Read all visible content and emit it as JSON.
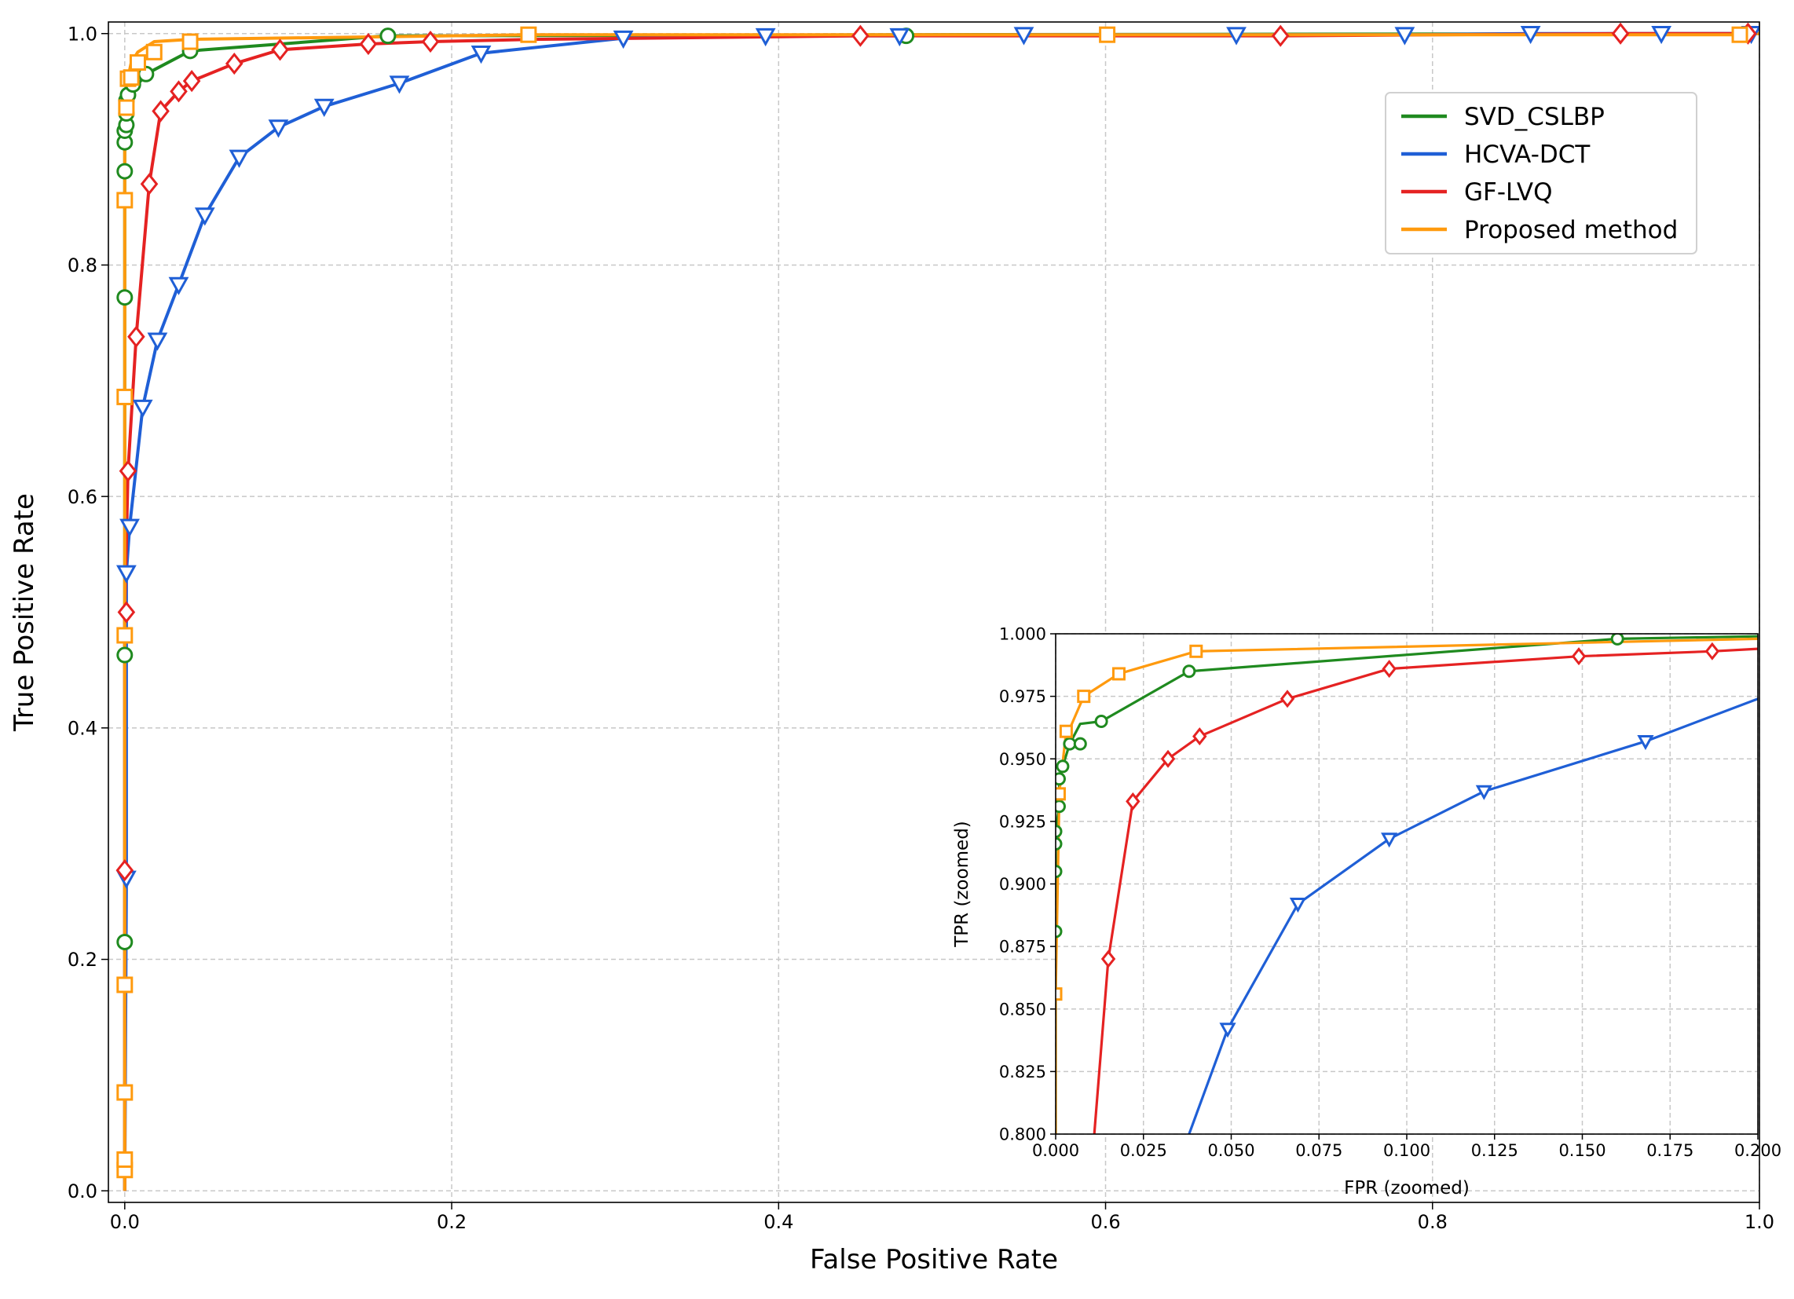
{
  "chart_data": [
    {
      "type": "line",
      "xlabel": "False Positive Rate",
      "ylabel": "True Positive Rate",
      "xlim": [
        -0.01,
        1.0
      ],
      "ylim": [
        -0.01,
        1.01
      ],
      "xticks": [
        0.0,
        0.2,
        0.4,
        0.6,
        0.8,
        1.0
      ],
      "xtick_labels": [
        "0.0",
        "0.2",
        "0.4",
        "0.6",
        "0.8",
        "1.0"
      ],
      "yticks": [
        0.0,
        0.2,
        0.4,
        0.6,
        0.8,
        1.0
      ],
      "ytick_labels": [
        "0.0",
        "0.2",
        "0.4",
        "0.6",
        "0.8",
        "1.0"
      ],
      "grid": true,
      "legend_position": "upper right",
      "series": [
        {
          "name": "SVD_CSLBP",
          "color": "#1f8a1f",
          "marker": "circle",
          "x": [
            0,
            0,
            0,
            0,
            0,
            0,
            0,
            0.001,
            0.001,
            0.002,
            0.004,
            0.008,
            0.013,
            0.04,
            0.16,
            0.475,
            1.0
          ],
          "y": [
            0,
            0.215,
            0.463,
            0.772,
            0.881,
            0.906,
            0.916,
            0.921,
            0.931,
            0.942,
            0.947,
            0.956,
            0.965,
            0.985,
            0.998,
            0.999,
            1.0
          ],
          "markers_x": [
            0,
            0,
            0.0,
            0.0,
            0.0,
            0.0,
            0.001,
            0.001,
            0.001,
            0.002,
            0.005,
            0.013,
            0.04,
            0.161,
            0.478
          ],
          "markers_y": [
            0.215,
            0.463,
            0.772,
            0.881,
            0.906,
            0.916,
            0.921,
            0.931,
            0.942,
            0.947,
            0.956,
            0.965,
            0.985,
            0.998,
            0.998
          ]
        },
        {
          "name": "HCVA-DCT",
          "color": "#1f5fd6",
          "marker": "triangle-down",
          "x": [
            0,
            0.001,
            0.001,
            0.003,
            0.011,
            0.02,
            0.033,
            0.049,
            0.07,
            0.094,
            0.122,
            0.168,
            0.218,
            0.305,
            0.392,
            0.475,
            0.55,
            0.68,
            0.785,
            0.86,
            0.94,
            0.995
          ],
          "y": [
            0,
            0.27,
            0.534,
            0.574,
            0.677,
            0.735,
            0.783,
            0.843,
            0.893,
            0.919,
            0.937,
            0.957,
            0.983,
            0.996,
            0.998,
            0.998,
            0.999,
            0.999,
            0.999,
            1.0,
            1.0,
            1.0
          ],
          "markers_x": [
            0.001,
            0.001,
            0.003,
            0.011,
            0.02,
            0.033,
            0.049,
            0.07,
            0.094,
            0.122,
            0.168,
            0.218,
            0.305,
            0.392,
            0.474,
            0.55,
            0.68,
            0.783,
            0.86,
            0.94,
            0.995
          ],
          "markers_y": [
            0.27,
            0.534,
            0.574,
            0.677,
            0.735,
            0.783,
            0.843,
            0.893,
            0.919,
            0.937,
            0.957,
            0.983,
            0.996,
            0.998,
            0.998,
            0.999,
            0.999,
            0.999,
            1.0,
            1.0,
            1.0
          ]
        },
        {
          "name": "GF-LVQ",
          "color": "#e52222",
          "marker": "diamond",
          "x": [
            0,
            0.0,
            0.0,
            0.002,
            0.007,
            0.015,
            0.022,
            0.033,
            0.041,
            0.067,
            0.095,
            0.149,
            0.187,
            0.25,
            0.45,
            0.707,
            0.915,
            0.995
          ],
          "y": [
            0,
            0.277,
            0.5,
            0.622,
            0.738,
            0.87,
            0.933,
            0.95,
            0.959,
            0.974,
            0.986,
            0.991,
            0.993,
            0.995,
            0.998,
            0.998,
            1.0,
            1.0
          ],
          "markers_x": [
            0.0,
            0.001,
            0.002,
            0.007,
            0.015,
            0.022,
            0.033,
            0.041,
            0.067,
            0.095,
            0.149,
            0.187,
            0.45,
            0.707,
            0.915,
            0.993
          ],
          "markers_y": [
            0.277,
            0.5,
            0.622,
            0.738,
            0.87,
            0.933,
            0.95,
            0.959,
            0.974,
            0.986,
            0.991,
            0.993,
            0.998,
            0.998,
            1.0,
            1.0
          ]
        },
        {
          "name": "Proposed method",
          "color": "#ff9a0e",
          "marker": "square",
          "x": [
            0,
            0.0,
            0.0,
            0.0,
            0.0,
            0.0,
            0.0,
            0.0,
            0.0,
            0.001,
            0.001,
            0.002,
            0.004,
            0.008,
            0.018,
            0.04,
            0.247,
            0.6,
            0.985,
            1.0
          ],
          "y": [
            0,
            0.018,
            0.027,
            0.085,
            0.178,
            0.48,
            0.686,
            0.856,
            0.936,
            0.94,
            0.961,
            0.962,
            0.975,
            0.984,
            0.993,
            0.995,
            0.999,
            0.999,
            0.999,
            1.0
          ],
          "markers_x": [
            0.0,
            0.0,
            0.0,
            0.0,
            0.0,
            0.0,
            0.0,
            0.001,
            0.002,
            0.004,
            0.008,
            0.018,
            0.04,
            0.247,
            0.601,
            0.988
          ],
          "markers_y": [
            0.018,
            0.027,
            0.085,
            0.178,
            0.48,
            0.686,
            0.856,
            0.936,
            0.961,
            0.962,
            0.975,
            0.984,
            0.993,
            0.999,
            0.999,
            0.999
          ]
        }
      ]
    },
    {
      "type": "line",
      "subplot": "inset",
      "xlabel": "FPR (zoomed)",
      "ylabel": "TPR (zoomed)",
      "xlim": [
        0.0,
        0.2
      ],
      "ylim": [
        0.8,
        1.0
      ],
      "xticks": [
        0.0,
        0.025,
        0.05,
        0.075,
        0.1,
        0.125,
        0.15,
        0.175,
        0.2
      ],
      "xtick_labels": [
        "0.000",
        "0.025",
        "0.050",
        "0.075",
        "0.100",
        "0.125",
        "0.150",
        "0.175",
        "0.200"
      ],
      "yticks": [
        0.8,
        0.825,
        0.85,
        0.875,
        0.9,
        0.925,
        0.95,
        0.975,
        1.0
      ],
      "ytick_labels": [
        "0.800",
        "0.825",
        "0.850",
        "0.875",
        "0.900",
        "0.925",
        "0.950",
        "0.975",
        "1.000"
      ],
      "grid": true,
      "series": [
        {
          "ref": "SVD_CSLBP",
          "color": "#1f8a1f",
          "marker": "circle",
          "x": [
            0.0,
            0.0,
            0.0,
            0.0,
            0.0,
            0.001,
            0.001,
            0.002,
            0.004,
            0.007,
            0.013,
            0.038,
            0.16,
            0.2
          ],
          "y": [
            0.8,
            0.881,
            0.905,
            0.916,
            0.921,
            0.931,
            0.942,
            0.947,
            0.956,
            0.964,
            0.965,
            0.985,
            0.998,
            0.999
          ],
          "markers_x": [
            0.0,
            0.0,
            0.0,
            0.0,
            0.001,
            0.001,
            0.002,
            0.004,
            0.007,
            0.013,
            0.038,
            0.16
          ],
          "markers_y": [
            0.881,
            0.905,
            0.916,
            0.921,
            0.931,
            0.942,
            0.947,
            0.956,
            0.956,
            0.965,
            0.985,
            0.998
          ]
        },
        {
          "ref": "HCVA-DCT",
          "color": "#1f5fd6",
          "marker": "triangle-down",
          "x": [
            0.038,
            0.049,
            0.069,
            0.095,
            0.122,
            0.168,
            0.2
          ],
          "y": [
            0.8,
            0.842,
            0.892,
            0.918,
            0.937,
            0.957,
            0.974
          ],
          "markers_x": [
            0.049,
            0.069,
            0.095,
            0.122,
            0.168
          ],
          "markers_y": [
            0.842,
            0.892,
            0.918,
            0.937,
            0.957
          ]
        },
        {
          "ref": "GF-LVQ",
          "color": "#e52222",
          "marker": "diamond",
          "x": [
            0.011,
            0.015,
            0.022,
            0.032,
            0.041,
            0.066,
            0.095,
            0.149,
            0.187,
            0.2
          ],
          "y": [
            0.8,
            0.87,
            0.933,
            0.95,
            0.959,
            0.974,
            0.986,
            0.991,
            0.993,
            0.994
          ],
          "markers_x": [
            0.015,
            0.022,
            0.032,
            0.041,
            0.066,
            0.095,
            0.149,
            0.187
          ],
          "markers_y": [
            0.87,
            0.933,
            0.95,
            0.959,
            0.974,
            0.986,
            0.991,
            0.993
          ]
        },
        {
          "ref": "Proposed method",
          "color": "#ff9a0e",
          "marker": "square",
          "x": [
            0.0,
            0.0,
            0.001,
            0.001,
            0.003,
            0.004,
            0.008,
            0.018,
            0.04,
            0.2
          ],
          "y": [
            0.8,
            0.856,
            0.932,
            0.936,
            0.961,
            0.962,
            0.975,
            0.984,
            0.993,
            0.998
          ],
          "markers_x": [
            0.0,
            0.001,
            0.003,
            0.008,
            0.018,
            0.04
          ],
          "markers_y": [
            0.856,
            0.936,
            0.961,
            0.975,
            0.984,
            0.993
          ]
        }
      ]
    }
  ]
}
